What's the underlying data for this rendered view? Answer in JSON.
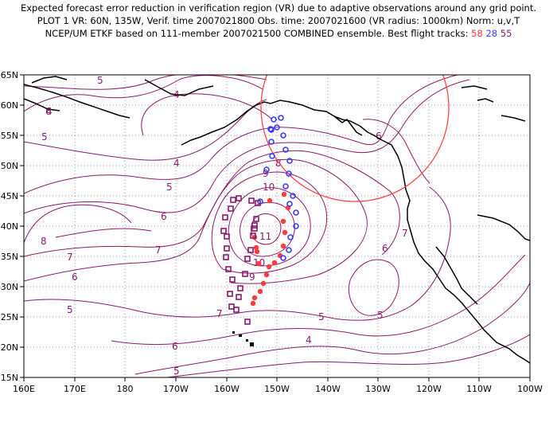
{
  "header": {
    "line1": "Expected forecast error reduction in verification region (VR) due to adaptive observations around any grid point.",
    "line2": "PLOT 1 VR: 60N, 135W, Verif. time 2007021800 Obs. time: 2007021600 (VR radius: 1000km) Norm: u,v,T",
    "line3_prefix": "NCEP/UM ETKF based on 111-member 2007021500 COMBINED ensemble.  Best flight tracks:",
    "track_a": "58",
    "track_b": "28",
    "track_c": "55"
  },
  "axes": {
    "x_ticks": [
      "160E",
      "170E",
      "180",
      "170W",
      "160W",
      "150W",
      "140W",
      "130W",
      "120W",
      "110W",
      "100W"
    ],
    "y_ticks": [
      "65N",
      "60N",
      "55N",
      "50N",
      "45N",
      "40N",
      "35N",
      "30N",
      "25N",
      "20N",
      "15N"
    ]
  },
  "contour_labels": [
    "5",
    "4",
    "6",
    "4",
    "5",
    "4",
    "5",
    "6",
    "7",
    "8",
    "7",
    "6",
    "8",
    "9",
    "10",
    "11",
    "10",
    "9",
    "7",
    "6",
    "5",
    "5",
    "4",
    "5",
    "5",
    "6",
    "7",
    "6"
  ],
  "colors": {
    "contour": "#8b1a6b",
    "vr_circle": "#ff4444",
    "track_58": "#ff3b3b",
    "track_28": "#3a3aff",
    "track_55": "#8b1a6b",
    "coast": "#000000"
  },
  "legend": {
    "tracks": [
      {
        "id": "58",
        "marker": "filled-dot",
        "color": "#ff3b3b"
      },
      {
        "id": "28",
        "marker": "open-circle",
        "color": "#3a3aff"
      },
      {
        "id": "55",
        "marker": "open-square",
        "color": "#8b1a6b"
      }
    ]
  }
}
